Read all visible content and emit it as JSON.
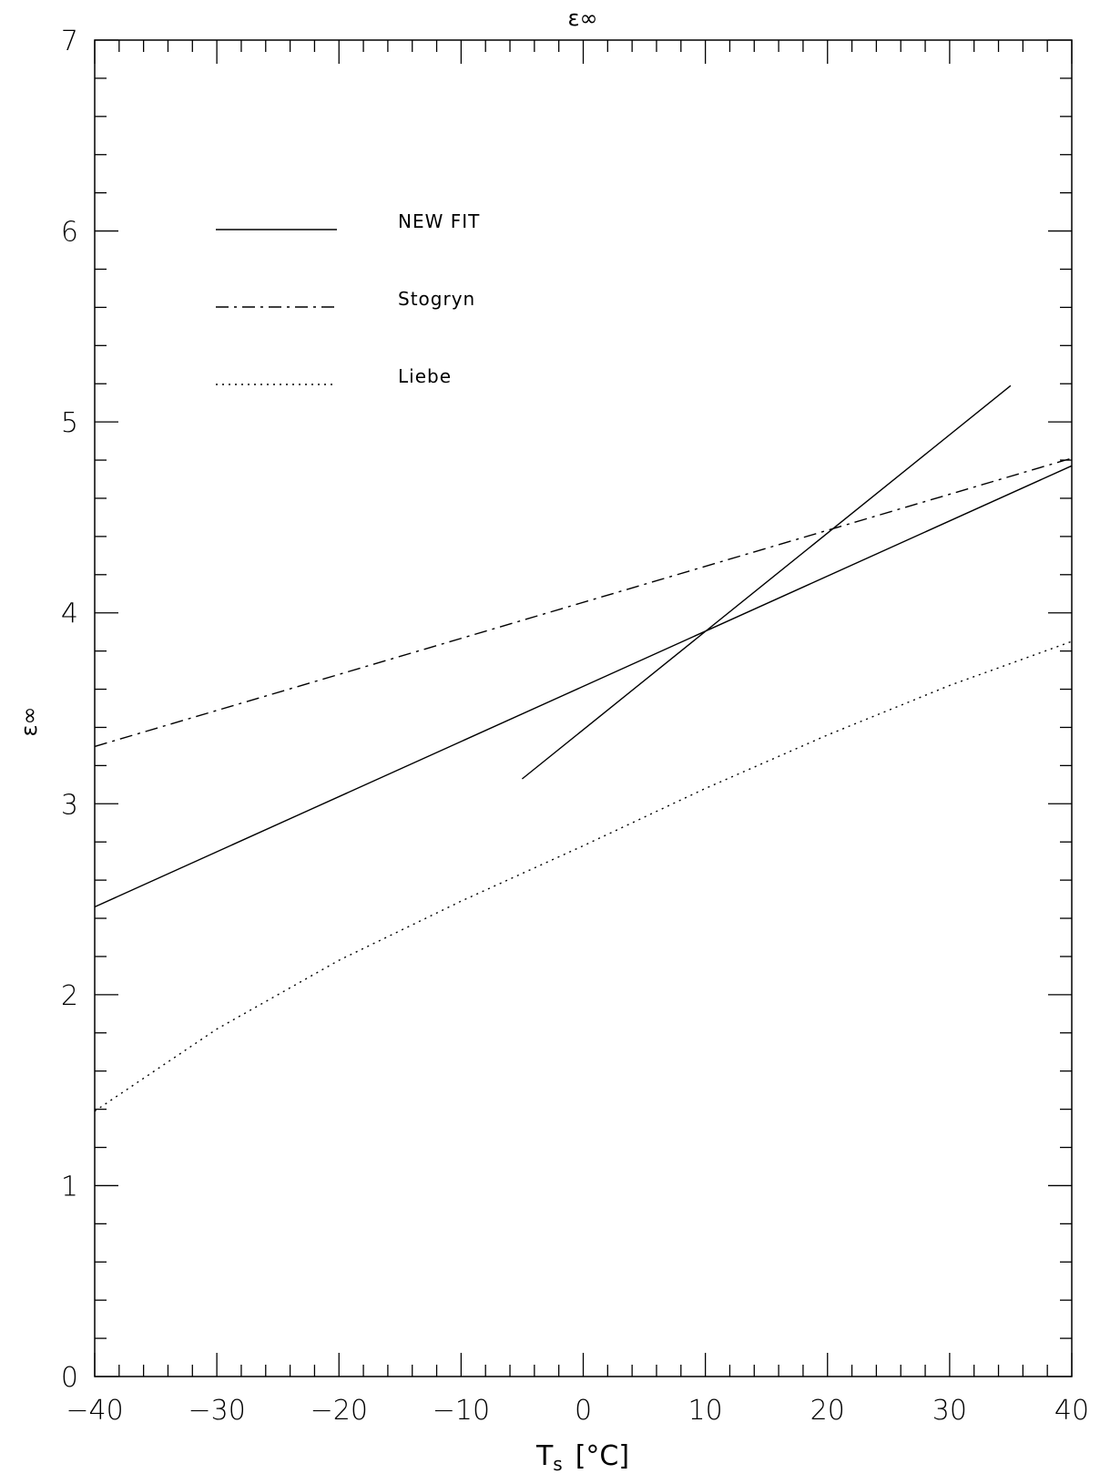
{
  "chart_data": {
    "type": "line",
    "title": "ε∞",
    "xlabel": "Ts [°C]",
    "xlabel_main": "T",
    "xlabel_sub": "s",
    "xlabel_unit": "[°C]",
    "ylabel": "ε∞",
    "xlim": [
      -40,
      40
    ],
    "ylim": [
      0,
      7
    ],
    "x_ticks": [
      -40,
      -30,
      -20,
      -10,
      0,
      10,
      20,
      30,
      40
    ],
    "x_tick_labels": [
      "−40",
      "−30",
      "−20",
      "−10",
      "0",
      "10",
      "20",
      "30",
      "40"
    ],
    "y_ticks": [
      0,
      1,
      2,
      3,
      4,
      5,
      6,
      7
    ],
    "y_tick_labels": [
      "0",
      "1",
      "2",
      "3",
      "4",
      "5",
      "6",
      "7"
    ],
    "legend_position": "top-left",
    "series": [
      {
        "name": "NEW FIT",
        "style": "solid",
        "x": [
          -40,
          40
        ],
        "y": [
          2.46,
          4.77
        ]
      },
      {
        "name": "NEW FIT",
        "style": "solid",
        "legend": false,
        "x": [
          -5,
          35
        ],
        "y": [
          3.13,
          5.19
        ]
      },
      {
        "name": "Stogryn",
        "style": "dashdot",
        "x": [
          -40,
          40
        ],
        "y": [
          3.3,
          4.81
        ]
      },
      {
        "name": "Liebe",
        "style": "dotted",
        "x": [
          -40,
          -30,
          -20,
          -10,
          0,
          10,
          20,
          30,
          40
        ],
        "y": [
          1.39,
          1.82,
          2.18,
          2.49,
          2.78,
          3.08,
          3.36,
          3.62,
          3.85
        ]
      }
    ]
  }
}
